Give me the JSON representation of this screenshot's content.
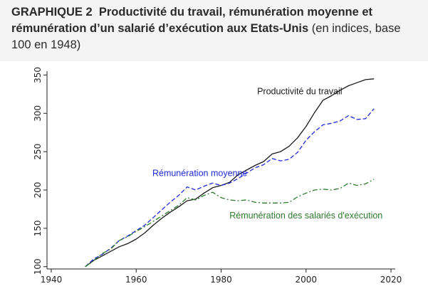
{
  "header": {
    "graph_label": "GRAPHIQUE 2",
    "title": "Productivité du travail, rémunération moyenne et rémunération d’un salarié d’exécution aux Etats-Unis",
    "subtitle": "(en indices, base 100 en 1948)"
  },
  "chart_data": {
    "type": "line",
    "title": "",
    "xlabel": "",
    "ylabel": "",
    "xlim": [
      1939,
      2021
    ],
    "ylim": [
      97,
      355
    ],
    "x_ticks": [
      1940,
      1960,
      1980,
      2000,
      2020
    ],
    "y_ticks": [
      100,
      150,
      200,
      250,
      300,
      350
    ],
    "grid": false,
    "series": [
      {
        "name": "Productivité du travail",
        "color": "#1a1a1a",
        "style": "solid",
        "x": [
          1948,
          1950,
          1952,
          1954,
          1956,
          1958,
          1960,
          1962,
          1964,
          1966,
          1968,
          1970,
          1972,
          1974,
          1976,
          1978,
          1980,
          1982,
          1984,
          1986,
          1988,
          1990,
          1992,
          1994,
          1996,
          1998,
          2000,
          2002,
          2004,
          2006,
          2008,
          2010,
          2012,
          2014,
          2016
        ],
        "y": [
          100,
          108,
          114,
          120,
          126,
          130,
          136,
          144,
          154,
          163,
          171,
          178,
          186,
          188,
          196,
          203,
          206,
          210,
          220,
          226,
          232,
          237,
          247,
          250,
          257,
          268,
          283,
          301,
          317,
          323,
          330,
          336,
          340,
          344,
          345
        ]
      },
      {
        "name": "Rémunération moyenne",
        "color": "#1f2ad6",
        "style": "dashed",
        "x": [
          1948,
          1950,
          1952,
          1954,
          1956,
          1958,
          1960,
          1962,
          1964,
          1966,
          1968,
          1970,
          1972,
          1974,
          1976,
          1978,
          1980,
          1982,
          1984,
          1986,
          1988,
          1990,
          1992,
          1994,
          1996,
          1998,
          2000,
          2002,
          2004,
          2006,
          2008,
          2010,
          2012,
          2014,
          2016
        ],
        "y": [
          100,
          110,
          116,
          124,
          134,
          140,
          147,
          154,
          164,
          174,
          184,
          193,
          204,
          200,
          205,
          209,
          206,
          209,
          215,
          222,
          229,
          233,
          241,
          238,
          240,
          249,
          265,
          276,
          285,
          287,
          290,
          297,
          292,
          293,
          306
        ]
      },
      {
        "name": "Rémunération des salariés d'exécution",
        "color": "#2d7a2d",
        "style": "dashdot",
        "x": [
          1948,
          1950,
          1952,
          1954,
          1956,
          1958,
          1960,
          1962,
          1964,
          1966,
          1968,
          1970,
          1972,
          1974,
          1976,
          1978,
          1980,
          1982,
          1984,
          1986,
          1988,
          1990,
          1992,
          1994,
          1996,
          1998,
          2000,
          2002,
          2004,
          2006,
          2008,
          2010,
          2012,
          2014,
          2016
        ],
        "y": [
          100,
          108,
          117,
          123,
          134,
          139,
          146,
          152,
          159,
          166,
          173,
          180,
          190,
          187,
          193,
          197,
          190,
          187,
          186,
          187,
          184,
          183,
          183,
          183,
          184,
          191,
          196,
          200,
          201,
          200,
          202,
          209,
          206,
          208,
          214
        ]
      }
    ],
    "annotations": [
      {
        "text": "Productivité du travail",
        "series": 0,
        "color": "#1a1a1a"
      },
      {
        "text": "Rémunération moyenne",
        "series": 1,
        "color": "#1f2ad6"
      },
      {
        "text": "Rémunération des salariés d'exécution",
        "series": 2,
        "color": "#2d7a2d"
      }
    ]
  }
}
